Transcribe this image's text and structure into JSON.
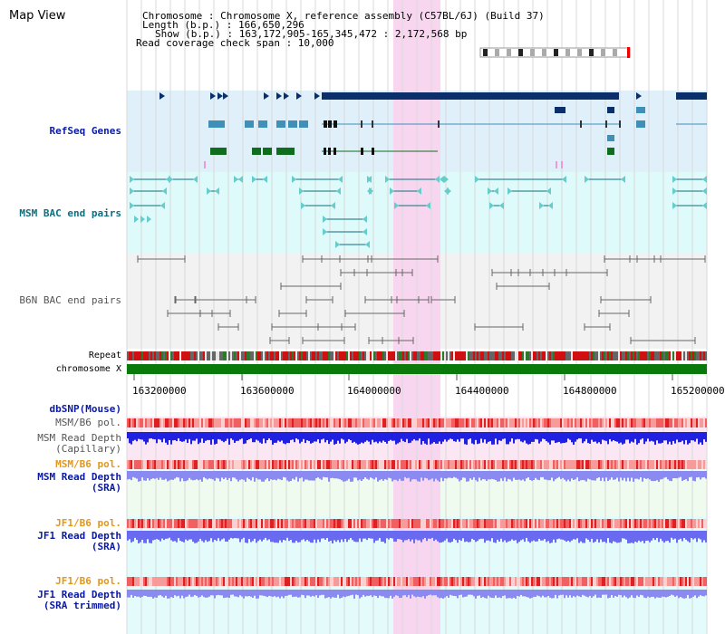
{
  "header": {
    "title": "Map View",
    "chromosome": "Chromosome      : Chromosome X, reference assembly (C57BL/6J) (Build 37)",
    "length": "Length (b.p.) : 166,650,296",
    "show": "Show (b.p.) : 163,172,905-165,345,472 : 2,172,568 bp",
    "read_coverage": "Read coverage check span : 10,000"
  },
  "tracks": {
    "refseq": "RefSeq Genes",
    "msm_bac": "MSM BAC end pairs",
    "b6n_bac": "B6N BAC end pairs",
    "repeat": "Repeat",
    "chromosome": "chromosome X",
    "dbsnp": "dbSNP(Mouse)",
    "msm_b6_pol_1": "MSM/B6 pol.",
    "msm_depth_cap_1": "MSM Read Depth",
    "msm_depth_cap_2": "(Capillary)",
    "msm_b6_pol_2": "MSM/B6 pol.",
    "msm_depth_sra_1": "MSM Read Depth",
    "msm_depth_sra_2": "(SRA)",
    "jf1_b6_pol_1": "JF1/B6 pol.",
    "jf1_depth_sra_1": "JF1 Read Depth",
    "jf1_depth_sra_2": "(SRA)",
    "jf1_b6_pol_2": "JF1/B6 pol.",
    "jf1_depth_trim_1": "JF1 Read Depth",
    "jf1_depth_trim_2": "(SRA trimmed)"
  },
  "axis_ticks": [
    "163200000",
    "163600000",
    "164000000",
    "164400000",
    "164800000",
    "165200000"
  ],
  "colors": {
    "highlight": "#f9d6f0",
    "refseq_bg": "#dff0fb",
    "msm_bg": "#dffafa",
    "b6n_bg": "#f2f2f2",
    "gene_navy": "#0a2f6b",
    "gene_teal": "#3f8fb8",
    "gene_green": "#0e6e1e",
    "msm_label": "#0e6e80",
    "b6n_label": "#555555",
    "label_blue": "#0a1aa5",
    "label_orange": "#e3971a",
    "chromosome_bar": "#0a7a0a"
  }
}
